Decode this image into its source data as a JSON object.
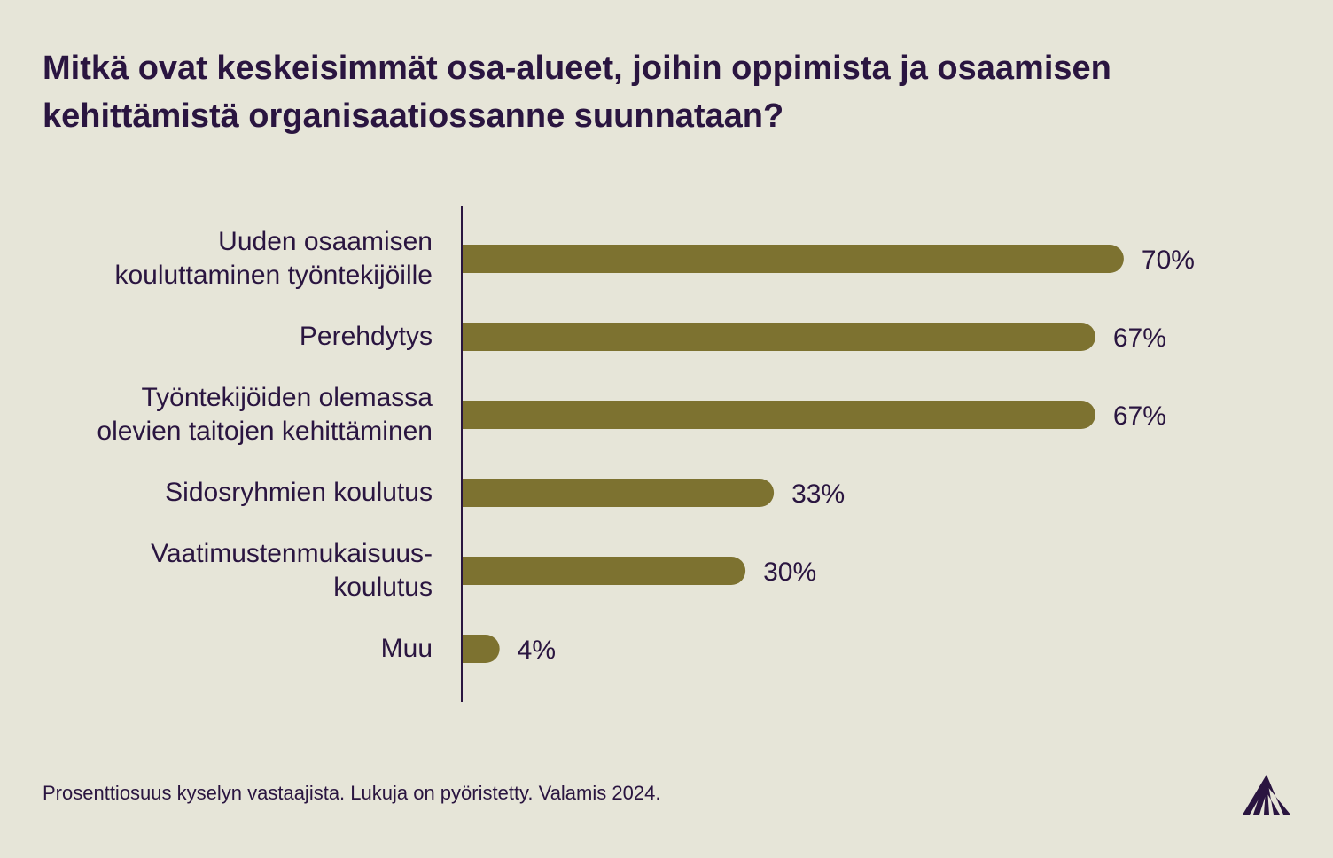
{
  "title_lines": [
    "Mitkä ovat keskeisimmät osa-alueet, joihin oppimista ja osaamisen",
    "kehittämistä organisaatiossanne suunnataan?"
  ],
  "footnote": "Prosenttiosuus kyselyn vastaajista. Lukuja on pyöristetty. Valamis 2024.",
  "logo_icon": "valamis-logo-icon",
  "colors": {
    "background": "#e6e5d8",
    "bar": "#7d7230",
    "text": "#2a1540",
    "axis": "#2a1540"
  },
  "chart_data": {
    "type": "bar",
    "orientation": "horizontal",
    "title": "Mitkä ovat keskeisimmät osa-alueet, joihin oppimista ja osaamisen kehittämistä organisaatiossanne suunnataan?",
    "categories": [
      [
        "Uuden osaamisen",
        "kouluttaminen työntekijöille"
      ],
      [
        "Perehdytys"
      ],
      [
        "Työntekijöiden olemassa",
        "olevien taitojen kehittäminen"
      ],
      [
        "Sidosryhmien koulutus"
      ],
      [
        "Vaatimustenmukaisuus-",
        "koulutus"
      ],
      [
        "Muu"
      ]
    ],
    "values": [
      70,
      67,
      67,
      33,
      30,
      4
    ],
    "value_labels": [
      "70%",
      "67%",
      "67%",
      "33%",
      "30%",
      "4%"
    ],
    "unit": "%",
    "xlim": [
      0,
      100
    ],
    "grid": false,
    "legend": "none"
  }
}
